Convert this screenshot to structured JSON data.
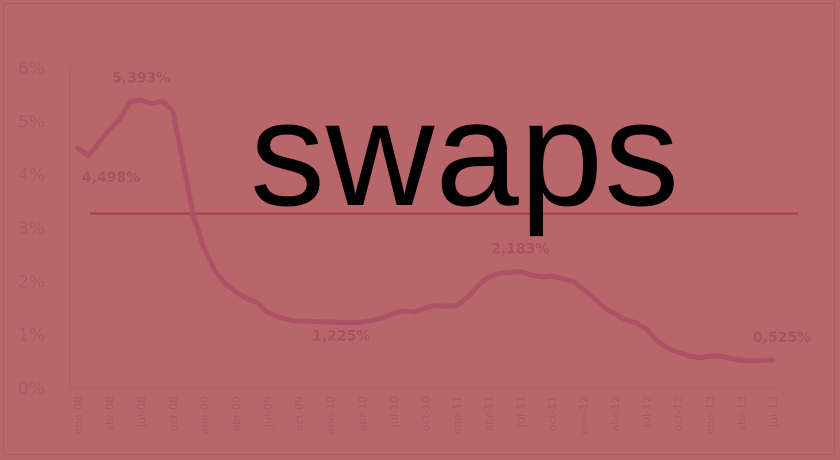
{
  "overlay_text": "swaps",
  "colors": {
    "background": "#b9666a",
    "series_line": "#ad5266",
    "reference_line": "#a83a45",
    "text": "#aa5863",
    "overlay_text": "#000000"
  },
  "chart_data": {
    "type": "line",
    "title": "",
    "xlabel": "",
    "ylabel": "",
    "ylim": [
      0,
      6
    ],
    "y_ticks": [
      "0%",
      "1%",
      "2%",
      "3%",
      "4%",
      "5%",
      "6%"
    ],
    "x_tick_labels": [
      "ene-08",
      "abr-08",
      "jul-08",
      "oct-08",
      "ene-09",
      "abr-09",
      "jul-09",
      "oct-09",
      "ene-10",
      "abr-10",
      "jul-10",
      "oct-10",
      "ene-11",
      "abr-11",
      "jul-11",
      "oct-11",
      "ene-12",
      "abr-12",
      "jul-12",
      "oct-12",
      "ene-13",
      "abr-13",
      "jul-13"
    ],
    "x_start": "ene-08",
    "x_end": "jul-13",
    "frequency": "monthly",
    "grid": false,
    "values": [
      4.498,
      4.35,
      4.6,
      4.85,
      5.05,
      5.38,
      5.393,
      5.33,
      5.38,
      5.2,
      4.2,
      3.2,
      2.6,
      2.2,
      1.95,
      1.8,
      1.68,
      1.6,
      1.42,
      1.33,
      1.28,
      1.25,
      1.25,
      1.24,
      1.24,
      1.225,
      1.225,
      1.24,
      1.27,
      1.32,
      1.4,
      1.45,
      1.42,
      1.5,
      1.55,
      1.53,
      1.55,
      1.7,
      1.92,
      2.08,
      2.15,
      2.17,
      2.183,
      2.12,
      2.08,
      2.1,
      2.05,
      2.0,
      1.85,
      1.68,
      1.5,
      1.38,
      1.28,
      1.22,
      1.1,
      0.88,
      0.75,
      0.67,
      0.6,
      0.57,
      0.6,
      0.6,
      0.55,
      0.52,
      0.5,
      0.52,
      0.525
    ],
    "reference_line": 3.27,
    "annotations": [
      {
        "text": "4,498%",
        "index": 0
      },
      {
        "text": "5,393%",
        "index": 6
      },
      {
        "text": "1,225%",
        "index": 25
      },
      {
        "text": "2,183%",
        "index": 42
      },
      {
        "text": "0,525%",
        "index": 66
      }
    ]
  }
}
